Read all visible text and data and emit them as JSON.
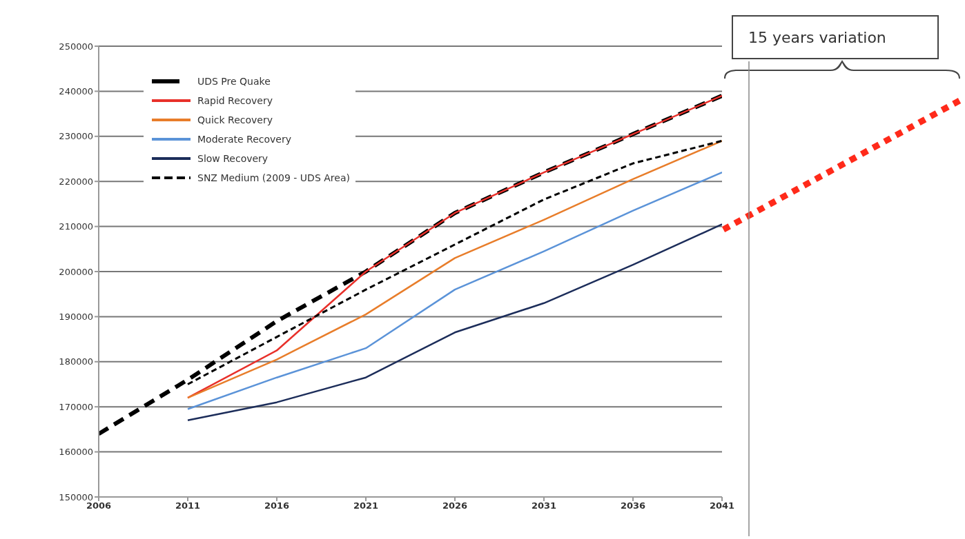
{
  "chart_data": {
    "type": "line",
    "x": [
      2006,
      2011,
      2016,
      2021,
      2026,
      2031,
      2036,
      2041
    ],
    "xlim": [
      2006,
      2041
    ],
    "xticks": [
      2006,
      2011,
      2016,
      2021,
      2026,
      2031,
      2036,
      2041
    ],
    "ylim": [
      150000,
      250000
    ],
    "yticks": [
      150000,
      160000,
      170000,
      180000,
      190000,
      200000,
      210000,
      220000,
      230000,
      240000,
      250000
    ],
    "grid": "y",
    "legend": "top left",
    "line_style": "solid",
    "series": [
      {
        "name": "UDS Pre Quake",
        "color": "#000000",
        "line_style": "dashed",
        "values": [
          164000,
          176000,
          189000,
          200000,
          213000,
          222000,
          230500,
          239000
        ]
      },
      {
        "name": "Rapid Recovery",
        "color": "#e8302a",
        "values": [
          null,
          172000,
          182500,
          200000,
          213000,
          222000,
          230500,
          239000
        ]
      },
      {
        "name": "Quick Recovery",
        "color": "#e87d2a",
        "values": [
          null,
          172000,
          180500,
          190500,
          203000,
          211500,
          220500,
          229000
        ]
      },
      {
        "name": "Moderate Recovery",
        "color": "#5b93d8",
        "values": [
          null,
          169500,
          176500,
          183000,
          196000,
          204500,
          213500,
          222000
        ]
      },
      {
        "name": "Slow Recovery",
        "color": "#1c2d5a",
        "values": [
          null,
          167000,
          171000,
          176500,
          186500,
          193000,
          201500,
          210500
        ]
      },
      {
        "name": "SNZ Medium (2009 - UDS Area)",
        "color": "#000000",
        "line_style": "dashed",
        "values": [
          null,
          175000,
          185500,
          196000,
          206000,
          216000,
          224000,
          229000
        ]
      }
    ],
    "annotations": [
      "15 years variation"
    ]
  }
}
